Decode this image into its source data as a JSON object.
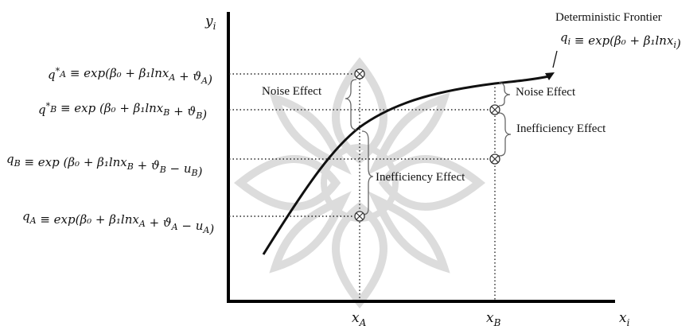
{
  "axes": {
    "y_label": "y",
    "y_label_sub": "i",
    "x_label": "x",
    "x_label_sub": "i",
    "x_ticks": [
      {
        "base": "x",
        "sub": "A"
      },
      {
        "base": "x",
        "sub": "B"
      }
    ]
  },
  "frontier": {
    "title": "Deterministic Frontier",
    "equation": "q_i ≡ exp(β₀ + β₁lnx_i)"
  },
  "y_levels": [
    {
      "id": "qA_star",
      "equation": "q*_A ≡ exp(β₀ + β₁lnx_A + ϑ_A)"
    },
    {
      "id": "qB_star",
      "equation": "q*_B ≡ exp (β₀ + β₁lnx_B + ϑ_B)"
    },
    {
      "id": "qB",
      "equation": "q_B ≡ exp (β₀ + β₁lnx_B + ϑ_B − u_B)"
    },
    {
      "id": "qA",
      "equation": "q_A ≡ exp(β₀ + β₁lnx_A + ϑ_A − u_A)"
    }
  ],
  "annotations": {
    "noise_A": "Noise Effect",
    "inefficiency_A": "Inefficiency Effect",
    "noise_B": "Noise Effect",
    "inefficiency_B": "Inefficiency Effect"
  },
  "colors": {
    "curve": "#111111",
    "watermark": "#d9d9d9",
    "brace": "#666666"
  },
  "icons": {
    "marker": "circle-x-marker-icon",
    "watermark": "ornamental-star-watermark-icon"
  }
}
